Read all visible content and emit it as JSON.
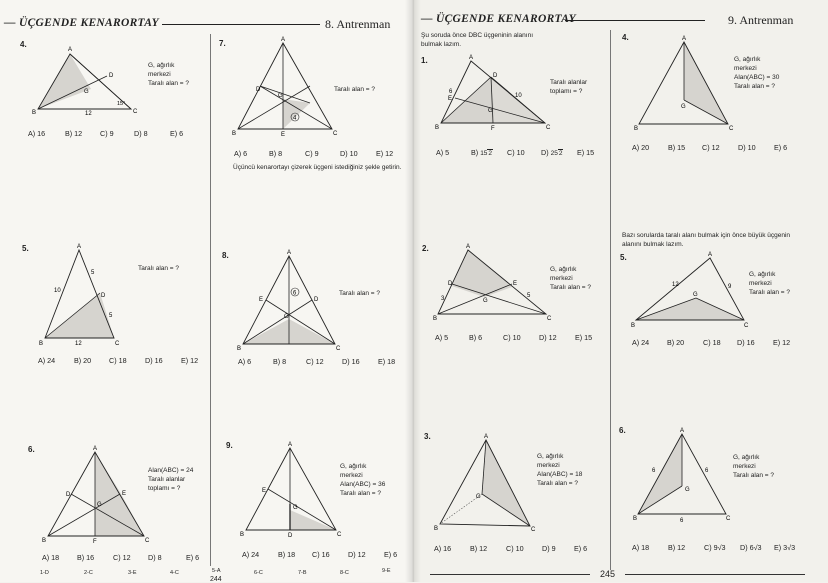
{
  "left": {
    "header_title": "— ÜÇGENDE KENARORTAY",
    "header_right": "8. Antrenman",
    "page_number": "244",
    "answers": [
      "1-D",
      "2-C",
      "3-E",
      "4-C",
      "5-A",
      "6-C",
      "7-B",
      "8-C",
      "9-E"
    ],
    "note_7": "Üçüncü kenarortayı çizerek üçgeni istediğiniz şekle getirin.",
    "questions": [
      {
        "num": "4.",
        "info": [
          "G, ağırlık",
          "merkezi",
          "Taralı alan = ?"
        ],
        "labels": {
          "A": "A",
          "B": "B",
          "C": "C",
          "D": "D",
          "G": "G",
          "side": "12",
          "angle": "15°"
        },
        "choices": [
          "A) 16",
          "B) 12",
          "C) 9",
          "D) 8",
          "E) 6"
        ]
      },
      {
        "num": "7.",
        "info": [
          "Taralı alan = ?"
        ],
        "labels": {
          "A": "A",
          "B": "B",
          "C": "C",
          "D": "D",
          "E": "E",
          "G": "G",
          "area": "4"
        },
        "choices": [
          "A) 6",
          "B) 8",
          "C) 9",
          "D) 10",
          "E) 12"
        ]
      },
      {
        "num": "5.",
        "info": [
          "Taralı alan = ?"
        ],
        "labels": {
          "A": "A",
          "B": "B",
          "C": "C",
          "D": "D",
          "s1": "10",
          "s2": "5",
          "s3": "5",
          "s4": "12"
        },
        "choices": [
          "A) 24",
          "B) 20",
          "C) 18",
          "D) 16",
          "E) 12"
        ]
      },
      {
        "num": "8.",
        "info": [
          "Taralı alan = ?"
        ],
        "labels": {
          "A": "A",
          "B": "B",
          "C": "C",
          "D": "D",
          "E": "E",
          "G": "G",
          "area": "6"
        },
        "choices": [
          "A) 6",
          "B) 8",
          "C) 12",
          "D) 16",
          "E) 18"
        ]
      },
      {
        "num": "6.",
        "info": [
          "Alan(ABC) = 24",
          "Taralı alanlar",
          "toplamı = ?"
        ],
        "labels": {
          "A": "A",
          "B": "B",
          "C": "C",
          "D": "D",
          "E": "E",
          "F": "F",
          "G": "G"
        },
        "choices": [
          "A) 18",
          "B) 16",
          "C) 12",
          "D) 8",
          "E) 6"
        ]
      },
      {
        "num": "9.",
        "info": [
          "G, ağırlık",
          "merkezi",
          "Alan(ABC) = 36",
          "Taralı alan = ?"
        ],
        "labels": {
          "A": "A",
          "B": "B",
          "C": "C",
          "D": "D",
          "E": "E",
          "G": "G"
        },
        "choices": [
          "A) 24",
          "B) 18",
          "C) 16",
          "D) 12",
          "E) 6"
        ]
      }
    ]
  },
  "right": {
    "header_title": "— ÜÇGENDE KENARORTAY",
    "header_right": "9. Antrenman",
    "page_number": "245",
    "note_1": "Şu soruda önce DBC üçgeninin alanını bulmak lazım.",
    "note_5": "Bazı sorularda taralı alanı bulmak için önce büyük üçgenin alanını bulmak lazım.",
    "questions": [
      {
        "num": "1.",
        "info": [
          "Taralı alanlar",
          "toplamı = ?"
        ],
        "labels": {
          "A": "A",
          "B": "B",
          "C": "C",
          "D": "D",
          "E": "E",
          "F": "F",
          "G": "G",
          "s1": "6",
          "s2": "10"
        },
        "choices": [
          "A) 5",
          "B)",
          "C) 10",
          "D)",
          "E) 15"
        ],
        "frac_b": [
          "15",
          "2"
        ],
        "frac_d": [
          "25",
          "2"
        ]
      },
      {
        "num": "4.",
        "info": [
          "G, ağırlık",
          "merkezi",
          "Alan(ABC) = 30",
          "Taralı alan = ?"
        ],
        "labels": {
          "A": "A",
          "B": "B",
          "C": "C",
          "G": "G"
        },
        "choices": [
          "A) 20",
          "B) 15",
          "C) 12",
          "D) 10",
          "E) 6"
        ]
      },
      {
        "num": "2.",
        "info": [
          "G, ağırlık",
          "merkezi",
          "Taralı alan = ?"
        ],
        "labels": {
          "A": "A",
          "B": "B",
          "C": "C",
          "D": "D",
          "E": "E",
          "G": "G",
          "s1": "3",
          "s2": "5"
        },
        "choices": [
          "A) 5",
          "B) 6",
          "C) 10",
          "D) 12",
          "E) 15"
        ]
      },
      {
        "num": "5.",
        "info": [
          "G, ağırlık",
          "merkezi",
          "Taralı alan = ?"
        ],
        "labels": {
          "A": "A",
          "B": "B",
          "C": "C",
          "G": "G",
          "s1": "12",
          "s2": "9"
        },
        "choices": [
          "A) 24",
          "B) 20",
          "C) 18",
          "D) 16",
          "E) 12"
        ]
      },
      {
        "num": "3.",
        "info": [
          "G, ağırlık",
          "merkezi",
          "Alan(ABC) = 18",
          "Taralı alan = ?"
        ],
        "labels": {
          "A": "A",
          "B": "B",
          "C": "C",
          "G": "G"
        },
        "choices": [
          "A) 16",
          "B) 12",
          "C) 10",
          "D) 9",
          "E) 6"
        ]
      },
      {
        "num": "6.",
        "info": [
          "G, ağırlık",
          "merkezi",
          "Taralı alan = ?"
        ],
        "labels": {
          "A": "A",
          "B": "B",
          "C": "C",
          "G": "G",
          "s1": "6",
          "s2": "6",
          "s3": "6"
        },
        "choices": [
          "A) 18",
          "B) 12",
          "C) 9√3",
          "D) 6√3",
          "E) 3√3"
        ]
      }
    ]
  }
}
